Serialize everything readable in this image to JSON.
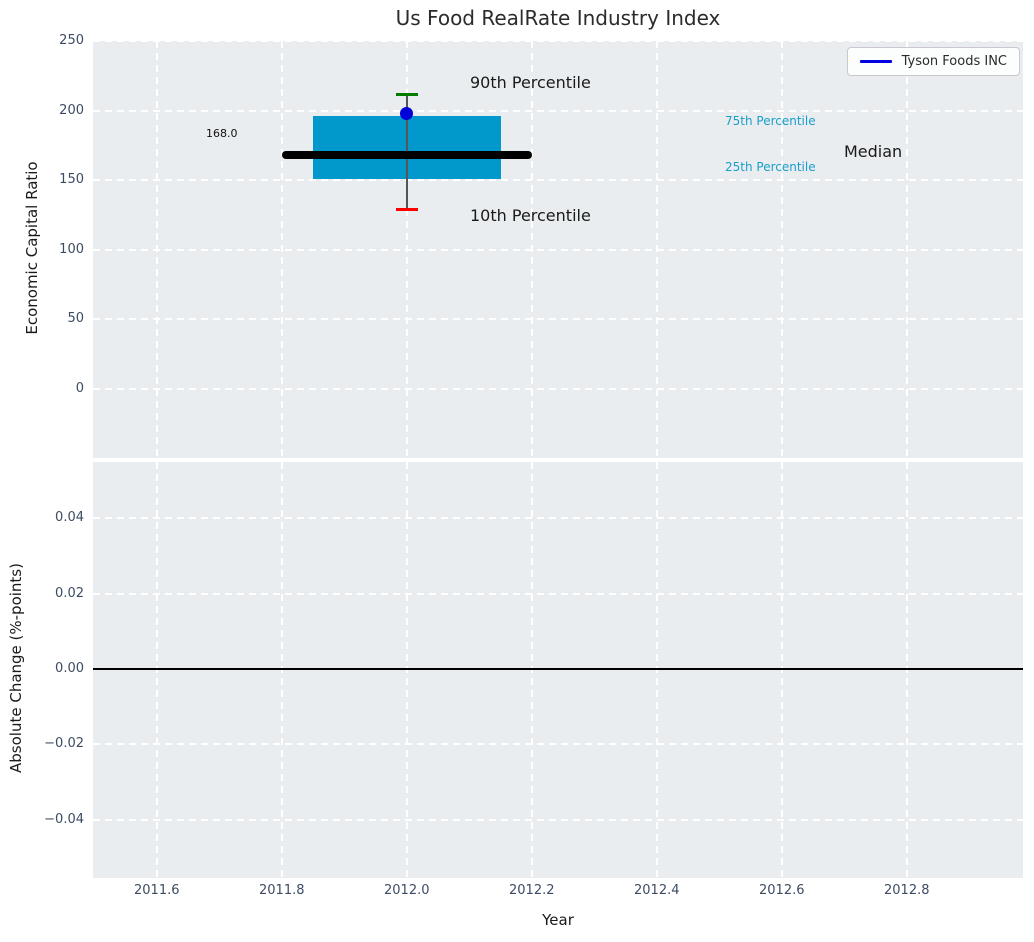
{
  "figure": {
    "title": "Us Food RealRate Industry Index",
    "legend": {
      "label": "Tyson Foods INC"
    }
  },
  "top_plot": {
    "ylabel": "Economic Capital Ratio",
    "yticks": [
      "250",
      "200",
      "150",
      "100",
      "50",
      "0"
    ],
    "annotations": {
      "p90": "90th Percentile",
      "p10": "10th Percentile",
      "p75": "75th Percentile",
      "p25": "25th Percentile",
      "median": "Median",
      "median_value": "168.0"
    }
  },
  "bottom_plot": {
    "ylabel": "Absolute Change (%-points)",
    "xlabel": "Year",
    "yticks": [
      "0.04",
      "0.02",
      "0.00",
      "−0.02",
      "−0.04"
    ],
    "xticks": [
      "2011.6",
      "2011.8",
      "2012.0",
      "2012.2",
      "2012.4",
      "2012.6",
      "2012.8"
    ]
  },
  "chart_data": [
    {
      "type": "box",
      "title": "Us Food RealRate Industry Index",
      "xlabel": "",
      "ylabel": "Economic Capital Ratio",
      "xlim": [
        2011.498,
        2012.986
      ],
      "ylim": [
        -49.6,
        250
      ],
      "yticks": [
        250,
        200,
        150,
        100,
        50,
        0
      ],
      "xticks": [
        2011.6,
        2011.8,
        2012.0,
        2012.2,
        2012.4,
        2012.6,
        2012.8
      ],
      "grid": true,
      "legend_position": "upper right",
      "legend_entries": [
        "Tyson Foods INC"
      ],
      "series": [
        {
          "name": "Industry percentile box",
          "x_center": 2012.0,
          "box_x_range": [
            2011.85,
            2012.15
          ],
          "median_x_range": [
            2011.8,
            2012.2
          ],
          "p10": 129,
          "p25": 151,
          "median": 168,
          "p75": 196,
          "p90": 212,
          "median_label": "168.0",
          "box_color": "#0199cb",
          "median_color": "#000000",
          "p90_cap_color": "#007d00",
          "p10_cap_color": "#ff0000"
        },
        {
          "name": "Tyson Foods INC",
          "type": "point",
          "x": 2012.0,
          "y": 198,
          "color": "#0000d9"
        }
      ],
      "annotations": [
        "90th Percentile",
        "10th Percentile",
        "75th Percentile",
        "25th Percentile",
        "Median",
        "168.0"
      ]
    },
    {
      "type": "line",
      "xlabel": "Year",
      "ylabel": "Absolute Change (%-points)",
      "xlim": [
        2011.498,
        2012.986
      ],
      "ylim": [
        -0.0555,
        0.055
      ],
      "yticks": [
        0.04,
        0.02,
        0.0,
        -0.02,
        -0.04
      ],
      "xticks": [
        2011.6,
        2011.8,
        2012.0,
        2012.2,
        2012.4,
        2012.6,
        2012.8
      ],
      "grid": true,
      "series": [],
      "zero_line_y": 0.0
    }
  ]
}
